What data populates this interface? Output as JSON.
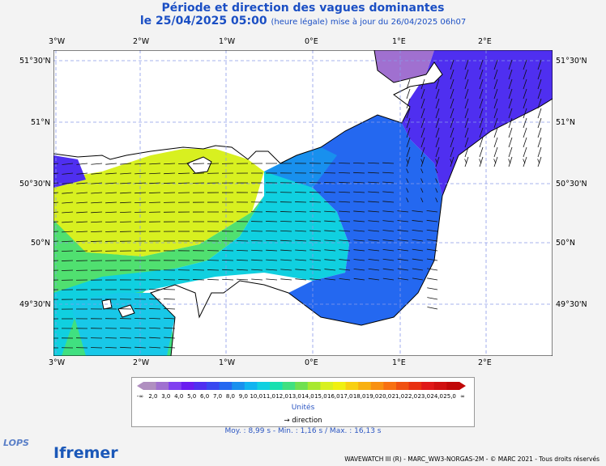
{
  "header": {
    "title": "Période et direction des vagues dominantes",
    "subtitle_main": "le 25/04/2025 05:00",
    "subtitle_note": "(heure légale) mise à jour du 26/04/2025 06h07"
  },
  "axes": {
    "lon_labels": [
      "3°W",
      "2°W",
      "1°W",
      "0°E",
      "1°E",
      "2°E"
    ],
    "lat_labels": [
      "51°30'N",
      "51°N",
      "50°30'N",
      "50°N",
      "49°30'N"
    ]
  },
  "legend": {
    "values": [
      "2,0",
      "3,0",
      "4,0",
      "5,0",
      "6,0",
      "7,0",
      "8,0",
      "9,0",
      "10,0",
      "11,0",
      "12,0",
      "13,0",
      "14,0",
      "15,0",
      "16,0",
      "17,0",
      "18,0",
      "19,0",
      "20,0",
      "21,0",
      "22,0",
      "23,0",
      "24,0",
      "25,0"
    ],
    "low_end": "-∞",
    "high_end": "∞",
    "colors": [
      "#b08fc0",
      "#a070d0",
      "#8040f0",
      "#6a1cf0",
      "#4f2ff0",
      "#3848f0",
      "#2468f0",
      "#1890ee",
      "#10b4f0",
      "#10d0e0",
      "#18e0b0",
      "#40e080",
      "#70e050",
      "#a8e830",
      "#d8f020",
      "#f0f010",
      "#f8d010",
      "#f8b010",
      "#f89010",
      "#f87010",
      "#f05010",
      "#e83010",
      "#e01818",
      "#d01010",
      "#c00808"
    ],
    "unit": "Unités",
    "direction_label": "direction"
  },
  "stats": {
    "text": "Moy. : 8,99 s   -   Min. : 1,16 s / Max. : 16,13 s"
  },
  "footer": {
    "credits": "WAVEWATCH III (R) - MARC_WW3-NORGAS-2M - © MARC 2021 - Tous droits réservés",
    "logo_left": "LOPS",
    "logo_main": "Ifremer"
  },
  "colors": {
    "sea_green": "#40e080",
    "sea_cyan": "#10d0e0",
    "sea_blue": "#2468f0",
    "sea_yellow": "#d8f020",
    "land": "#ffffff",
    "grid": "#8a9ae8"
  }
}
